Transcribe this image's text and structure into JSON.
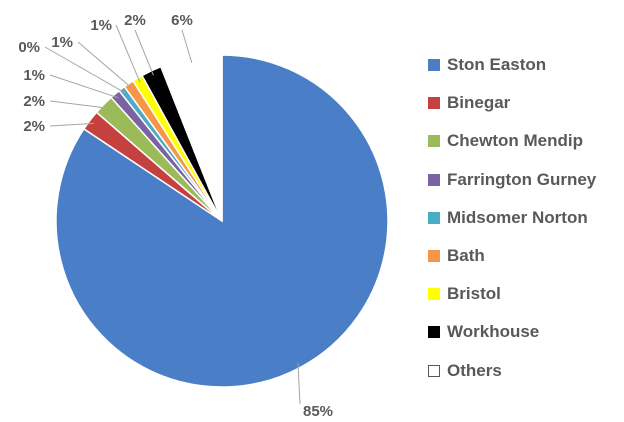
{
  "chart_data": {
    "type": "pie",
    "categories": [
      "Ston Easton",
      "Binegar",
      "Chewton Mendip",
      "Farrington Gurney",
      "Midsomer Norton",
      "Bath",
      "Bristol",
      "Workhouse",
      "Others"
    ],
    "values": [
      85,
      2,
      2,
      1,
      0,
      1,
      1,
      2,
      6
    ],
    "labels": [
      "85%",
      "2%",
      "2%",
      "1%",
      "0%",
      "1%",
      "1%",
      "2%",
      "6%"
    ],
    "colors": [
      "#4a7ec6",
      "#c4413f",
      "#9bbb59",
      "#7a62a3",
      "#4bacc6",
      "#f79646",
      "#ffff00",
      "#000000",
      "#ffffff"
    ],
    "title": "",
    "legend_position": "right"
  }
}
